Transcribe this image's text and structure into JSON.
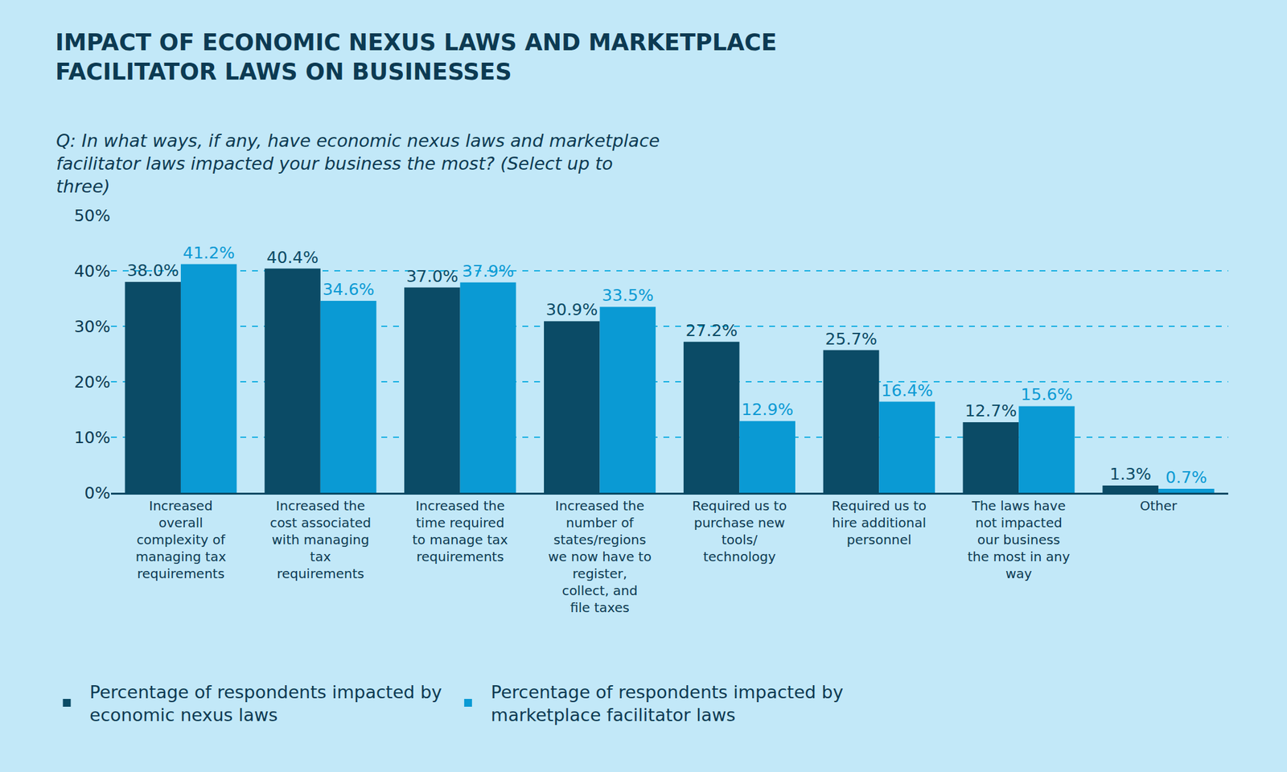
{
  "chart_data": {
    "type": "bar",
    "title": "IMPACT OF ECONOMIC NEXUS LAWS AND MARKETPLACE FACILITATOR LAWS ON BUSINESSES",
    "subtitle": "Q: In what ways, if any, have economic nexus laws and marketplace facilitator laws impacted your business the most? (Select up to three)",
    "categories": [
      "Increased overall complexity of managing tax requirements",
      "Increased the cost associated with managing tax requirements",
      "Increased the time required to manage tax requirements",
      "Increased the number of states/regions we now have to register, collect, and file taxes",
      "Required us to purchase new tools/ technology",
      "Required us to hire additional personnel",
      "The laws have not impacted our business the most in any way",
      "Other"
    ],
    "series": [
      {
        "name": "Percentage of respondents impacted by economic nexus laws",
        "color": "#0b4b66",
        "values": [
          38.0,
          40.4,
          37.0,
          30.9,
          27.2,
          25.7,
          12.7,
          1.3
        ],
        "value_labels": [
          "38.0%",
          "40.4%",
          "37.0%",
          "30.9%",
          "27.2%",
          "25.7%",
          "12.7%",
          "1.3%"
        ]
      },
      {
        "name": "Percentage of respondents impacted by marketplace facilitator laws",
        "color": "#0a9ad4",
        "values": [
          41.2,
          34.6,
          37.9,
          33.5,
          12.9,
          16.4,
          15.6,
          0.7
        ],
        "value_labels": [
          "41.2%",
          "34.6%",
          "37.9%",
          "33.5%",
          "12.9%",
          "16.4%",
          "15.6%",
          "0.7%"
        ]
      }
    ],
    "ylim": [
      0,
      50
    ],
    "yticks": [
      {
        "value": 0,
        "label": "0%"
      },
      {
        "value": 10,
        "label": "10%"
      },
      {
        "value": 20,
        "label": "20%"
      },
      {
        "value": 30,
        "label": "30%"
      },
      {
        "value": 40,
        "label": "40%"
      },
      {
        "value": 50,
        "label": "50%"
      }
    ],
    "grid": true,
    "data_labels": true,
    "legend": "bottom"
  }
}
